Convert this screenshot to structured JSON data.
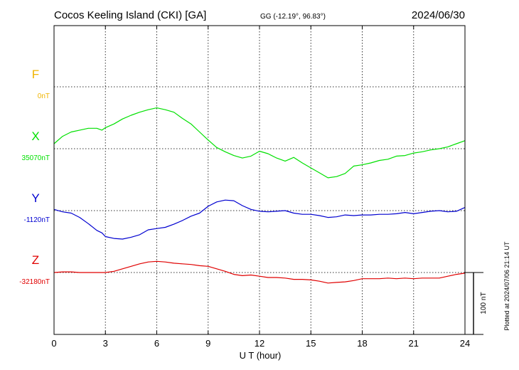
{
  "header": {
    "station": "Cocos Keeling Island (CKI)  [GA]",
    "coords": "GG (-12.19°,  96.83°)",
    "date": "2024/06/30"
  },
  "footer": {
    "plotted": "Plotted at 2024/07/06 21:14 UT"
  },
  "chart_data": {
    "type": "line",
    "title": "Cocos Keeling Island (CKI)  [GA]",
    "xlabel": "U T (hour)",
    "ylabel": "",
    "xlim": [
      0,
      24
    ],
    "xticks": [
      "0",
      "3",
      "6",
      "9",
      "12",
      "15",
      "18",
      "21",
      "24"
    ],
    "grid": true,
    "scale_bar": {
      "label": "100 nT",
      "nT": 100
    },
    "series": [
      {
        "name": "F",
        "baseline": "0nT",
        "color": "#f0b400",
        "x": [],
        "y": []
      },
      {
        "name": "X",
        "baseline": "35070nT",
        "color": "#00e000",
        "x": [
          0,
          0.5,
          1,
          1.5,
          2,
          2.5,
          2.8,
          3,
          3.5,
          4,
          4.5,
          5,
          5.5,
          6,
          6.5,
          7,
          7.5,
          8,
          8.5,
          9,
          9.5,
          10,
          10.5,
          11,
          11.5,
          12,
          12.5,
          13,
          13.5,
          14,
          14.5,
          15,
          15.5,
          16,
          16.5,
          17,
          17.5,
          18,
          18.5,
          19,
          19.5,
          20,
          20.5,
          21,
          21.5,
          22,
          22.5,
          23,
          23.5,
          24
        ],
        "y": [
          35078,
          35090,
          35097,
          35100,
          35103,
          35103,
          35100,
          35104,
          35110,
          35118,
          35124,
          35129,
          35133,
          35136,
          35133,
          35129,
          35119,
          35110,
          35097,
          35084,
          35072,
          35065,
          35059,
          35055,
          35058,
          35066,
          35062,
          35055,
          35050,
          35056,
          35047,
          35039,
          35031,
          35023,
          35025,
          35030,
          35042,
          35044,
          35047,
          35051,
          35053,
          35058,
          35059,
          35063,
          35065,
          35068,
          35070,
          35073,
          35078,
          35083
        ]
      },
      {
        "name": "Y",
        "baseline": "-1120nT",
        "color": "#0000d0",
        "x": [
          0,
          0.5,
          1,
          1.5,
          2,
          2.5,
          2.8,
          3,
          3.5,
          4,
          4.5,
          5,
          5.5,
          6,
          6.5,
          7,
          7.5,
          8,
          8.5,
          9,
          9.5,
          10,
          10.5,
          11,
          11.5,
          12,
          12.5,
          13,
          13.5,
          14,
          14.5,
          15,
          15.5,
          16,
          16.5,
          17,
          17.5,
          18,
          18.5,
          19,
          19.5,
          20,
          20.5,
          21,
          21.5,
          22,
          22.5,
          23,
          23.5,
          24
        ],
        "y": [
          -1118,
          -1122,
          -1124,
          -1131,
          -1141,
          -1152,
          -1156,
          -1162,
          -1165,
          -1166,
          -1163,
          -1159,
          -1151,
          -1149,
          -1147,
          -1142,
          -1136,
          -1129,
          -1124,
          -1113,
          -1106,
          -1103,
          -1104,
          -1112,
          -1118,
          -1121,
          -1122,
          -1121,
          -1120,
          -1124,
          -1126,
          -1126,
          -1128,
          -1131,
          -1130,
          -1127,
          -1128,
          -1127,
          -1127,
          -1126,
          -1126,
          -1125,
          -1123,
          -1125,
          -1123,
          -1121,
          -1120,
          -1122,
          -1121,
          -1115
        ]
      },
      {
        "name": "Z",
        "baseline": "-32180nT",
        "color": "#e00000",
        "x": [
          0,
          0.5,
          1,
          1.5,
          2,
          2.5,
          3,
          3.5,
          4,
          4.5,
          5,
          5.5,
          6,
          6.5,
          7,
          7.5,
          8,
          8.5,
          9,
          9.5,
          10,
          10.5,
          11,
          11.5,
          12,
          12.5,
          13,
          13.5,
          14,
          14.5,
          15,
          15.5,
          16,
          16.5,
          17,
          17.5,
          18,
          18.5,
          19,
          19.5,
          20,
          20.5,
          21,
          21.5,
          22,
          22.5,
          23,
          23.5,
          24
        ],
        "y": [
          -32180,
          -32179,
          -32179,
          -32180,
          -32180,
          -32180,
          -32180,
          -32178,
          -32174,
          -32170,
          -32166,
          -32163,
          -32162,
          -32163,
          -32165,
          -32166,
          -32167,
          -32169,
          -32170,
          -32174,
          -32178,
          -32183,
          -32185,
          -32184,
          -32186,
          -32188,
          -32188,
          -32189,
          -32191,
          -32191,
          -32192,
          -32194,
          -32197,
          -32196,
          -32195,
          -32193,
          -32190,
          -32190,
          -32190,
          -32189,
          -32190,
          -32189,
          -32190,
          -32189,
          -32189,
          -32189,
          -32186,
          -32183,
          -32181
        ]
      }
    ]
  }
}
